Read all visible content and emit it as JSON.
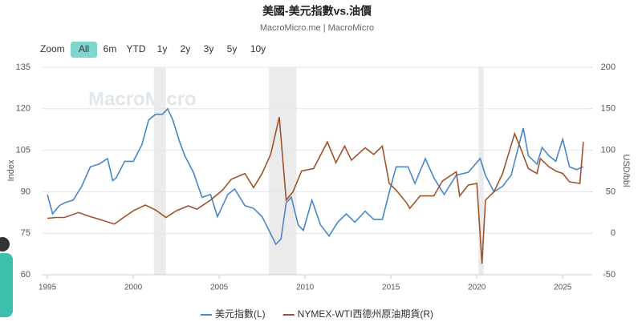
{
  "chart_data": {
    "type": "line",
    "title": "美國-美元指數vs.油價",
    "subtitle": "MacroMicro.me | MacroMicro",
    "watermark": "MacroMicro",
    "zoom_label": "Zoom",
    "range_buttons": [
      "All",
      "6m",
      "YTD",
      "1y",
      "2y",
      "3y",
      "5y",
      "10y"
    ],
    "y_label": "Index",
    "y2_label": "USD/bbl",
    "xlim": [
      1994.67,
      2026.58
    ],
    "xticks": [
      1995,
      2000,
      2005,
      2010,
      2015,
      2020,
      2025
    ],
    "ylim": [
      60,
      135
    ],
    "yticks": [
      60,
      75,
      90,
      105,
      120,
      135
    ],
    "y2lim": [
      -50,
      200
    ],
    "y2ticks": [
      -50,
      0,
      50,
      100,
      150,
      200
    ],
    "grid": true,
    "recessions": [
      [
        2001.2,
        2001.9
      ],
      [
        2007.9,
        2009.5
      ],
      [
        2020.1,
        2020.4
      ]
    ],
    "series": [
      {
        "name": "美元指數(L)",
        "color": "#4a86c8",
        "axis": "y",
        "x": [
          1995.0,
          1995.3,
          1995.7,
          1996.0,
          1996.5,
          1997.0,
          1997.5,
          1998.0,
          1998.5,
          1998.8,
          1999.0,
          1999.5,
          2000.0,
          2000.5,
          2000.9,
          2001.3,
          2001.7,
          2002.0,
          2002.3,
          2002.7,
          2003.0,
          2003.5,
          2004.0,
          2004.5,
          2004.9,
          2005.5,
          2005.9,
          2006.5,
          2007.0,
          2007.5,
          2007.9,
          2008.3,
          2008.6,
          2008.9,
          2009.2,
          2009.6,
          2009.9,
          2010.4,
          2010.9,
          2011.4,
          2011.9,
          2012.4,
          2012.9,
          2013.5,
          2014.0,
          2014.5,
          2015.0,
          2015.3,
          2016.0,
          2016.4,
          2017.0,
          2017.5,
          2018.1,
          2018.8,
          2019.5,
          2020.2,
          2020.5,
          2021.0,
          2021.5,
          2022.0,
          2022.7,
          2023.0,
          2023.5,
          2023.8,
          2024.2,
          2024.6,
          2025.0,
          2025.4,
          2025.8,
          2026.2
        ],
        "values": [
          89,
          82,
          85,
          86,
          87,
          92,
          99,
          100,
          102,
          94,
          95,
          101,
          101,
          107,
          116,
          118,
          118,
          120,
          116,
          108,
          103,
          97,
          88,
          89,
          81,
          89,
          91,
          85,
          84,
          81,
          76,
          71,
          73,
          86,
          88,
          78,
          76,
          87,
          78,
          74,
          79,
          82,
          79,
          83,
          80,
          80,
          92,
          99,
          99,
          93,
          102,
          95,
          89,
          96,
          97,
          102,
          96,
          90,
          92,
          96,
          113,
          103,
          100,
          106,
          103,
          101,
          109,
          99,
          98,
          99
        ]
      },
      {
        "name": "NYMEX-WTI西德州原油期貨(R)",
        "color": "#a0522d",
        "axis": "y2",
        "x": [
          1995.0,
          1995.5,
          1996.0,
          1996.8,
          1997.5,
          1998.0,
          1998.9,
          1999.5,
          2000.0,
          2000.7,
          2001.3,
          2001.9,
          2002.5,
          2003.2,
          2003.7,
          2004.5,
          2005.2,
          2005.7,
          2006.5,
          2007.0,
          2007.5,
          2008.0,
          2008.5,
          2008.9,
          2009.3,
          2009.8,
          2010.5,
          2011.3,
          2011.8,
          2012.3,
          2012.7,
          2013.5,
          2014.0,
          2014.5,
          2014.9,
          2015.3,
          2015.9,
          2016.1,
          2016.7,
          2017.5,
          2018.0,
          2018.8,
          2019.0,
          2019.5,
          2020.0,
          2020.3,
          2020.5,
          2021.0,
          2021.5,
          2022.2,
          2022.5,
          2023.0,
          2023.5,
          2023.7,
          2024.2,
          2024.6,
          2025.0,
          2025.4,
          2026.0,
          2026.2
        ],
        "values": [
          18,
          19,
          19,
          25,
          20,
          17,
          11,
          20,
          27,
          34,
          28,
          19,
          27,
          33,
          29,
          40,
          52,
          65,
          72,
          55,
          72,
          95,
          140,
          40,
          50,
          75,
          78,
          110,
          85,
          105,
          88,
          103,
          95,
          105,
          60,
          52,
          37,
          30,
          45,
          45,
          63,
          74,
          45,
          58,
          60,
          -37,
          40,
          50,
          72,
          120,
          105,
          78,
          72,
          90,
          80,
          75,
          72,
          62,
          60,
          110
        ]
      }
    ]
  }
}
